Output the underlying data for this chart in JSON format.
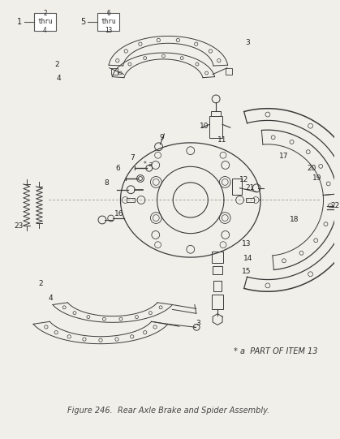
{
  "title": "Figure 246.  Rear Axle Brake and Spider Assembly.",
  "part_note": "* a  PART OF ITEM 13",
  "bg_color": "#f0efe9",
  "fig_width": 4.19,
  "fig_height": 5.41,
  "dpi": 100,
  "title_fontsize": 7.0,
  "note_fontsize": 7.0,
  "lc": "#3a3a3a",
  "lw": 0.7
}
